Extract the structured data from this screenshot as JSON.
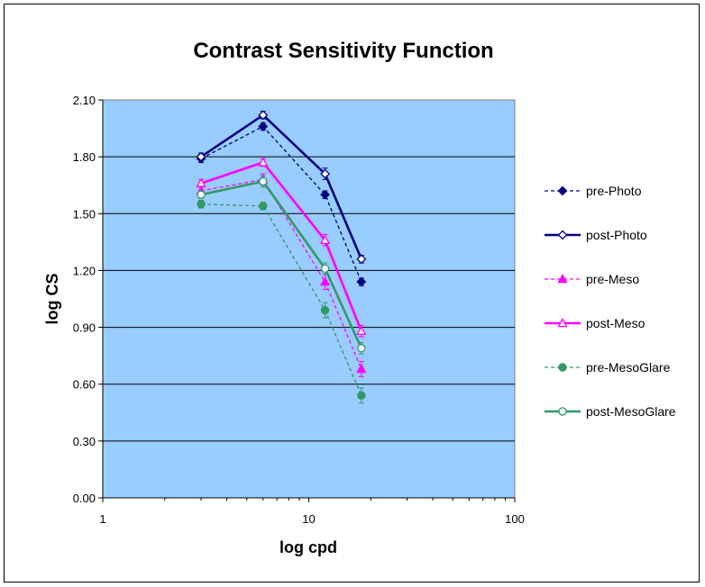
{
  "chart_data": {
    "type": "line",
    "title": "Contrast Sensitivity Function",
    "xlabel": "log cpd",
    "ylabel": "log CS",
    "xscale": "log",
    "xlim": [
      1,
      100
    ],
    "ylim": [
      0,
      2.1
    ],
    "x_ticks": [
      "1",
      "10",
      "100"
    ],
    "y_ticks": [
      "0.00",
      "0.30",
      "0.60",
      "0.90",
      "1.20",
      "1.50",
      "1.80",
      "2.10"
    ],
    "grid": "horizontal",
    "legend_position": "right",
    "plot_background": "#99ccff",
    "x": [
      3,
      6,
      12,
      18
    ],
    "series": [
      {
        "name": "pre-Photo",
        "values": [
          1.79,
          1.96,
          1.6,
          1.14
        ],
        "error": [
          0.02,
          0.02,
          0.02,
          0.02
        ],
        "color": "#000080",
        "dash": true,
        "marker": "diamond",
        "filled": true
      },
      {
        "name": "post-Photo",
        "values": [
          1.8,
          2.02,
          1.71,
          1.26
        ],
        "error": [
          0.02,
          0.02,
          0.03,
          0.02
        ],
        "color": "#000080",
        "dash": false,
        "marker": "diamond",
        "filled": false
      },
      {
        "name": "pre-Meso",
        "values": [
          1.62,
          1.68,
          1.14,
          0.68
        ],
        "error": [
          0.02,
          0.03,
          0.04,
          0.04
        ],
        "color": "#ff00ff",
        "dash": true,
        "marker": "triangle",
        "filled": true
      },
      {
        "name": "post-Meso",
        "values": [
          1.66,
          1.77,
          1.36,
          0.88
        ],
        "error": [
          0.02,
          0.02,
          0.03,
          0.03
        ],
        "color": "#ff00ff",
        "dash": false,
        "marker": "triangle",
        "filled": false
      },
      {
        "name": "pre-MesoGlare",
        "values": [
          1.55,
          1.54,
          0.99,
          0.54
        ],
        "error": [
          0.02,
          0.02,
          0.04,
          0.04
        ],
        "color": "#339966",
        "dash": true,
        "marker": "circle",
        "filled": true
      },
      {
        "name": "post-MesoGlare",
        "values": [
          1.6,
          1.67,
          1.21,
          0.79
        ],
        "error": [
          0.02,
          0.03,
          0.03,
          0.03
        ],
        "color": "#339966",
        "dash": false,
        "marker": "circle",
        "filled": false
      }
    ]
  }
}
